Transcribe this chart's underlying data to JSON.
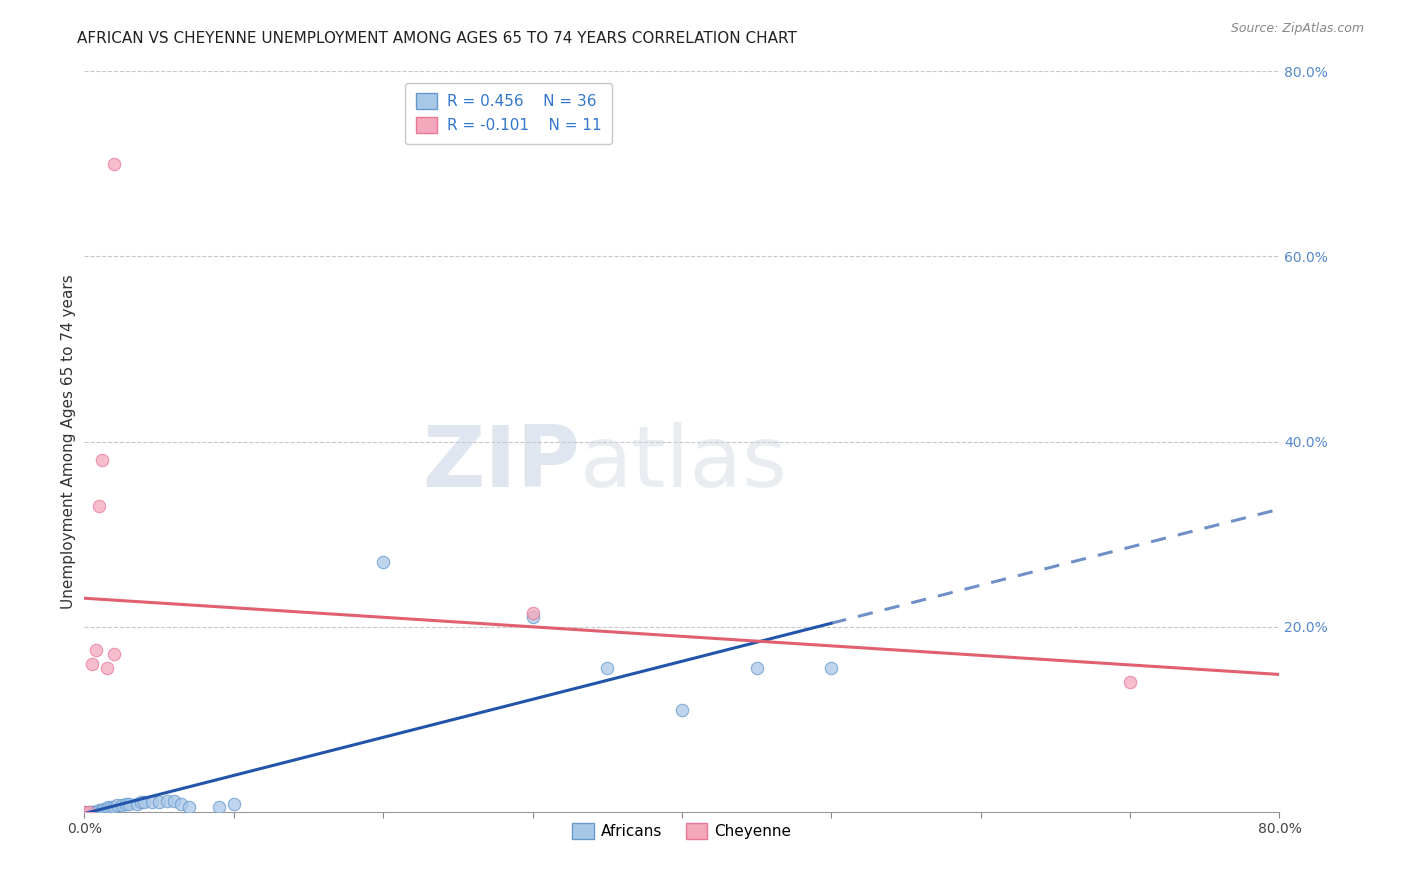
{
  "title": "AFRICAN VS CHEYENNE UNEMPLOYMENT AMONG AGES 65 TO 74 YEARS CORRELATION CHART",
  "source": "Source: ZipAtlas.com",
  "ylabel": "Unemployment Among Ages 65 to 74 years",
  "xlim": [
    0.0,
    0.8
  ],
  "ylim": [
    0.0,
    0.8
  ],
  "xtick_vals": [
    0.0,
    0.1,
    0.2,
    0.3,
    0.4,
    0.5,
    0.6,
    0.7,
    0.8
  ],
  "xtick_labels": [
    "0.0%",
    "",
    "",
    "",
    "",
    "",
    "",
    "",
    "80.0%"
  ],
  "ytick_vals": [
    0.0,
    0.2,
    0.4,
    0.6,
    0.8
  ],
  "ytick_labels": [
    "",
    "20.0%",
    "40.0%",
    "60.0%",
    "80.0%"
  ],
  "africans_color": "#a8c8e8",
  "cheyenne_color": "#f4a8bc",
  "africans_edge_color": "#6699cc",
  "cheyenne_edge_color": "#e87898",
  "africans_line_color": "#2255aa",
  "cheyenne_line_color": "#e06070",
  "africans_R": 0.456,
  "africans_N": 36,
  "cheyenne_R": -0.101,
  "cheyenne_N": 11,
  "africans_scatter": [
    [
      0.0,
      0.0
    ],
    [
      0.003,
      0.0
    ],
    [
      0.005,
      0.0
    ],
    [
      0.006,
      0.0
    ],
    [
      0.007,
      0.0
    ],
    [
      0.008,
      0.0
    ],
    [
      0.009,
      0.0
    ],
    [
      0.01,
      0.0
    ],
    [
      0.01,
      0.002
    ],
    [
      0.012,
      0.002
    ],
    [
      0.013,
      0.003
    ],
    [
      0.015,
      0.003
    ],
    [
      0.016,
      0.005
    ],
    [
      0.018,
      0.005
    ],
    [
      0.02,
      0.005
    ],
    [
      0.022,
      0.007
    ],
    [
      0.025,
      0.007
    ],
    [
      0.028,
      0.008
    ],
    [
      0.03,
      0.008
    ],
    [
      0.035,
      0.008
    ],
    [
      0.038,
      0.01
    ],
    [
      0.04,
      0.01
    ],
    [
      0.045,
      0.01
    ],
    [
      0.05,
      0.01
    ],
    [
      0.055,
      0.012
    ],
    [
      0.06,
      0.012
    ],
    [
      0.065,
      0.008
    ],
    [
      0.07,
      0.005
    ],
    [
      0.09,
      0.005
    ],
    [
      0.1,
      0.008
    ],
    [
      0.2,
      0.27
    ],
    [
      0.3,
      0.21
    ],
    [
      0.35,
      0.155
    ],
    [
      0.4,
      0.11
    ],
    [
      0.45,
      0.155
    ],
    [
      0.5,
      0.155
    ]
  ],
  "cheyenne_scatter": [
    [
      0.0,
      0.0
    ],
    [
      0.003,
      0.0
    ],
    [
      0.005,
      0.16
    ],
    [
      0.008,
      0.175
    ],
    [
      0.01,
      0.33
    ],
    [
      0.012,
      0.38
    ],
    [
      0.015,
      0.155
    ],
    [
      0.02,
      0.17
    ],
    [
      0.3,
      0.215
    ],
    [
      0.7,
      0.14
    ],
    [
      0.02,
      0.7
    ]
  ],
  "watermark_zip": "ZIP",
  "watermark_atlas": "atlas",
  "background_color": "#ffffff",
  "grid_color": "#c8c8c8",
  "title_fontsize": 11,
  "legend_fontsize": 11,
  "axis_label_fontsize": 11,
  "tick_fontsize": 10,
  "marker_size": 80,
  "line_width": 2.2
}
